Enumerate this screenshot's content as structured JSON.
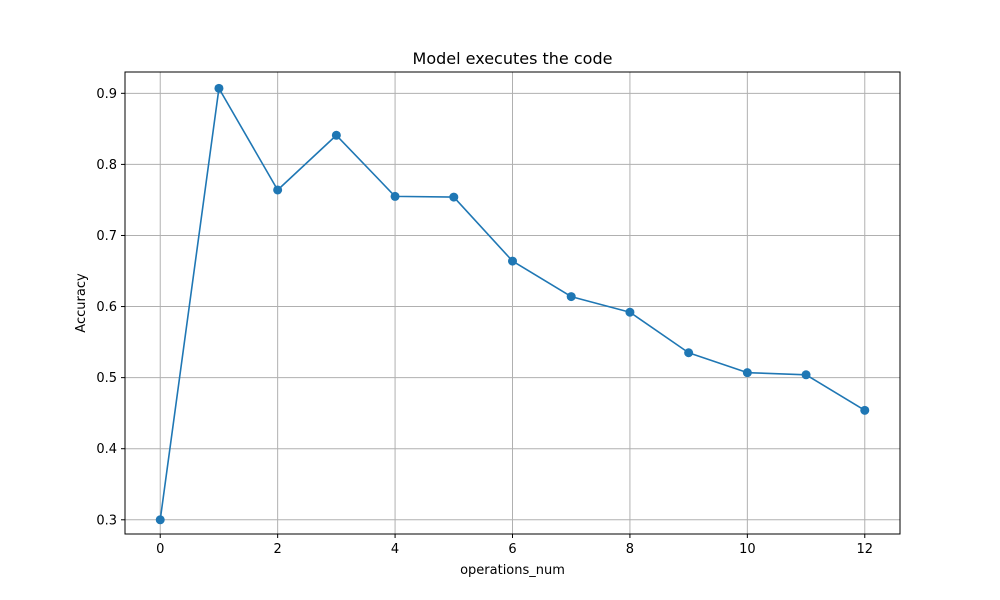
{
  "chart_data": {
    "type": "line",
    "title": "Model executes the code",
    "xlabel": "operations_num",
    "ylabel": "Accuracy",
    "grid": true,
    "marker": "circle",
    "xlim": [
      -0.6,
      12.6
    ],
    "ylim": [
      0.28,
      0.93
    ],
    "xticks": [
      0,
      2,
      4,
      6,
      8,
      10,
      12
    ],
    "yticks": [
      0.3,
      0.4,
      0.5,
      0.6,
      0.7,
      0.8,
      0.9
    ],
    "series": [
      {
        "color": "#1f77b4",
        "x": [
          0,
          1,
          2,
          3,
          4,
          5,
          6,
          7,
          8,
          9,
          10,
          11,
          12
        ],
        "y": [
          0.3,
          0.907,
          0.764,
          0.841,
          0.755,
          0.754,
          0.664,
          0.614,
          0.592,
          0.535,
          0.507,
          0.504,
          0.454
        ]
      }
    ]
  }
}
